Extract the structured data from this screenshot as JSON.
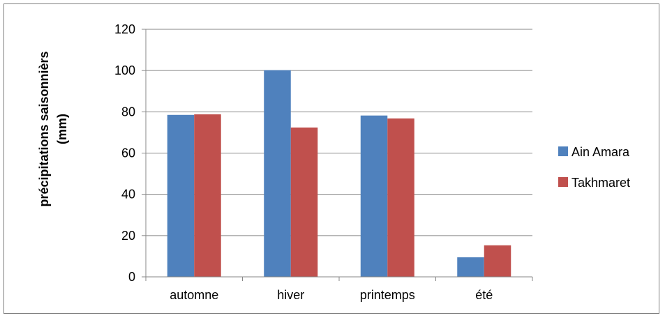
{
  "chart_data": {
    "type": "bar",
    "title": "",
    "xlabel": "",
    "ylabel": "précipitations saisonnièrs",
    "ylabel_unit": "(mm)",
    "categories": [
      "automne",
      "hiver",
      "printemps",
      "été"
    ],
    "series": [
      {
        "name": "Ain Amara",
        "color": "#4f81bd",
        "values": [
          78.5,
          100.2,
          78.2,
          9.5
        ]
      },
      {
        "name": "Takhmaret",
        "color": "#c0504d",
        "values": [
          78.8,
          72.4,
          76.8,
          15.3
        ]
      }
    ],
    "ylim": [
      0,
      120
    ],
    "yticks": [
      0,
      20,
      40,
      60,
      80,
      100,
      120
    ],
    "grid": true,
    "legend_position": "right"
  }
}
